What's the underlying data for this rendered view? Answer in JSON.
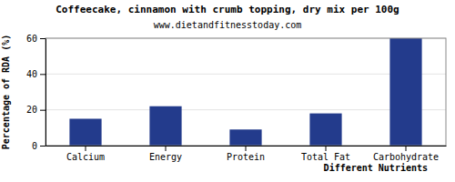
{
  "chart_data": {
    "type": "bar",
    "title": "Coffeecake, cinnamon with crumb topping, dry mix per 100g",
    "subtitle": "www.dietandfitnesstoday.com",
    "x_label": "Different Nutrients",
    "y_label": "Percentage of RDA (%)",
    "categories": [
      "Calcium",
      "Energy",
      "Protein",
      "Total Fat",
      "Carbohydrate"
    ],
    "values": [
      15,
      22,
      9,
      18,
      60
    ],
    "color": "#233b8c",
    "ylim": [
      0,
      60
    ],
    "yticks": [
      0,
      20,
      40,
      60
    ],
    "grid": true
  }
}
